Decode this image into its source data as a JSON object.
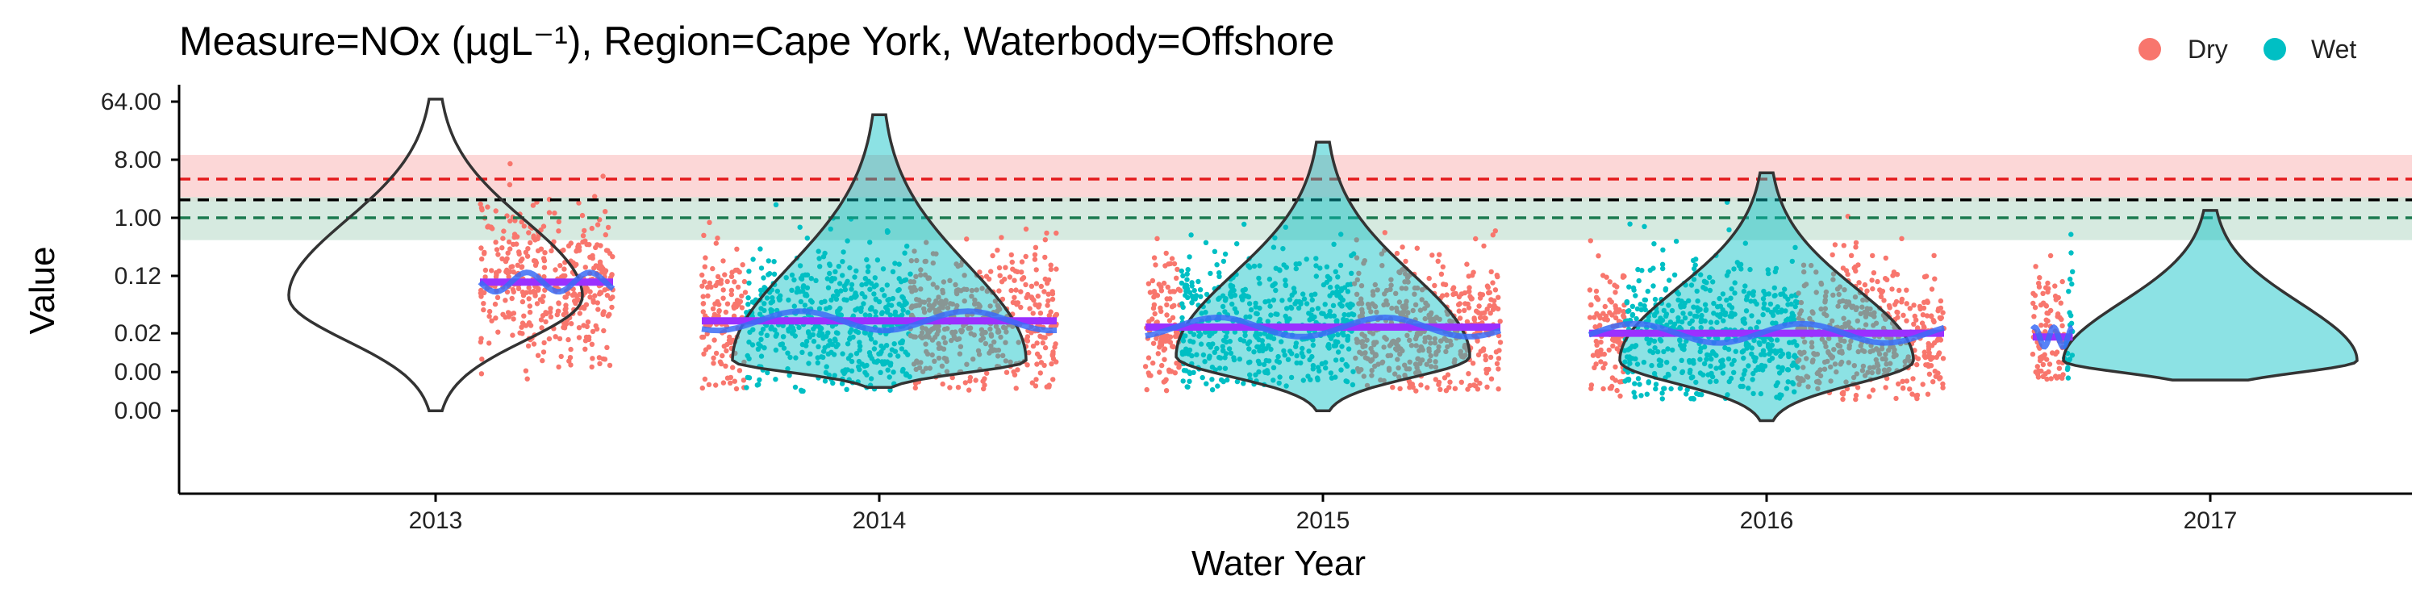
{
  "chart_data": {
    "type": "scatter",
    "title": "Measure=NOx (µgL⁻¹), Region=Cape York, Waterbody=Offshore",
    "xlabel": "Water Year",
    "ylabel": "Value",
    "y_scale": "log2",
    "y_ticks": [
      {
        "value": 0.001,
        "label": "0.00"
      },
      {
        "value": 0.004,
        "label": "0.00"
      },
      {
        "value": 0.016,
        "label": "0.02"
      },
      {
        "value": 0.125,
        "label": "0.12"
      },
      {
        "value": 1,
        "label": "1.00"
      },
      {
        "value": 8,
        "label": "8.00"
      },
      {
        "value": 64,
        "label": "64.00"
      }
    ],
    "x_ticks": [
      "2013",
      "2014",
      "2015",
      "2016",
      "2017"
    ],
    "legend": {
      "position": "top-right",
      "entries": [
        {
          "name": "Dry",
          "color": "#F8766D"
        },
        {
          "name": "Wet",
          "color": "#00BFC4"
        }
      ]
    },
    "guidelines": [
      {
        "value": 4,
        "color": "#E41A1C",
        "style": "dashed",
        "band": [
          1.8,
          9.5
        ],
        "band_color": "#FBD0D0"
      },
      {
        "value": 1.9,
        "color": "#000000",
        "style": "dashed"
      },
      {
        "value": 1.0,
        "color": "#1B7A4F",
        "style": "dashed",
        "band": [
          0.45,
          2.1
        ],
        "band_color": "#CFE6DB"
      }
    ],
    "years": [
      {
        "label": "2013",
        "mean": 0.1,
        "violin_range": [
          0.001,
          70
        ],
        "violin_mode": 0.06,
        "points_range": [
          0.0025,
          60
        ],
        "segments": [
          {
            "season": "Dry",
            "x_range": [
              2013.1,
              2013.4
            ]
          }
        ]
      },
      {
        "label": "2014",
        "mean": 0.025,
        "violin_range": [
          0.0023,
          40
        ],
        "violin_mode": 0.006,
        "points_range": [
          0.002,
          35
        ],
        "segments": [
          {
            "season": "Dry",
            "x_range": [
              2013.6,
              2013.7
            ]
          },
          {
            "season": "Wet",
            "x_range": [
              2013.7,
              2014.07
            ]
          },
          {
            "season": "Dry",
            "x_range": [
              2014.07,
              2014.4
            ]
          }
        ]
      },
      {
        "label": "2015",
        "mean": 0.02,
        "violin_range": [
          0.001,
          15
        ],
        "violin_mode": 0.007,
        "points_range": [
          0.002,
          10
        ],
        "segments": [
          {
            "season": "Dry",
            "x_range": [
              2014.6,
              2014.68
            ]
          },
          {
            "season": "Wet",
            "x_range": [
              2014.68,
              2015.07
            ]
          },
          {
            "season": "Dry",
            "x_range": [
              2015.07,
              2015.4
            ]
          }
        ]
      },
      {
        "label": "2016",
        "mean": 0.016,
        "violin_range": [
          0.0007,
          5
        ],
        "violin_mode": 0.006,
        "points_range": [
          0.0015,
          3
        ],
        "segments": [
          {
            "season": "Dry",
            "x_range": [
              2015.6,
              2015.68
            ]
          },
          {
            "season": "Wet",
            "x_range": [
              2015.68,
              2016.07
            ]
          },
          {
            "season": "Dry",
            "x_range": [
              2016.07,
              2016.4
            ]
          }
        ]
      },
      {
        "label": "2017",
        "mean": 0.014,
        "violin_range": [
          0.003,
          1.3
        ],
        "violin_mode": 0.006,
        "points_range": [
          0.003,
          0.8
        ],
        "segments": [
          {
            "season": "Dry",
            "x_range": [
              2016.6,
              2016.67
            ]
          },
          {
            "season": "Wet",
            "x_range": [
              2016.67,
              2016.69
            ]
          }
        ]
      }
    ]
  }
}
